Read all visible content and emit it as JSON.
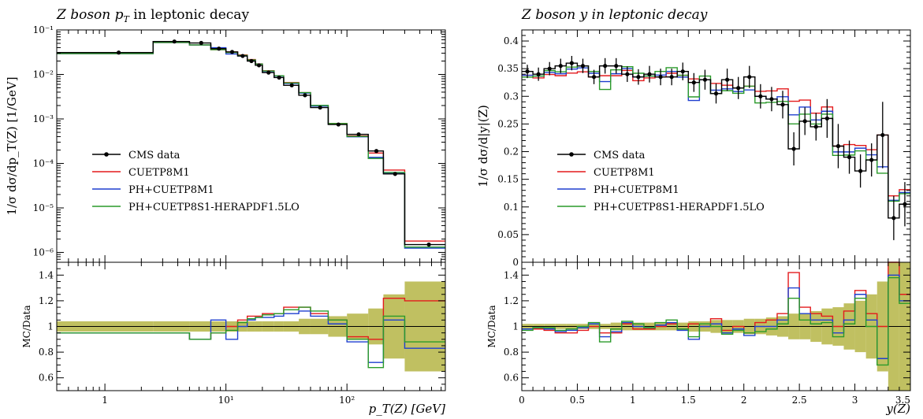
{
  "colors": {
    "data": "#000000",
    "cuetp8m1": "#e31a1c",
    "ph_cuetp8m1": "#1f3fcf",
    "ph_cuetp8s1": "#2a9a2a",
    "band": "#b5b545"
  },
  "chart_data": [
    {
      "type": "line",
      "title": "Z boson p_T in leptonic decay",
      "xlabel": "p_T(Z) [GeV]",
      "ylabel": "1/σ dσ/dp_T(Z) [1/GeV]",
      "ratio_ylabel": "MC/Data",
      "xscale": "log",
      "yscale": "log",
      "xlim": [
        0.4,
        650
      ],
      "ylim": [
        6e-07,
        0.1
      ],
      "ratio_ylim": [
        0.5,
        1.5
      ],
      "xticks": [
        "1",
        "10¹",
        "10²"
      ],
      "yticks": [
        "10⁻⁶",
        "10⁻⁵",
        "10⁻⁴",
        "10⁻³",
        "10⁻²",
        "10⁻¹"
      ],
      "ratio_yticks": [
        "0.6",
        "0.8",
        "1",
        "1.2",
        "1.4"
      ],
      "legend_position": "center-left",
      "bin_edges": [
        0.4,
        2.5,
        5,
        7.5,
        10,
        12.5,
        15,
        17.5,
        20,
        25,
        30,
        40,
        50,
        70,
        100,
        150,
        200,
        300,
        650
      ],
      "data_x": [
        1.3,
        3.75,
        6.25,
        8.75,
        11.25,
        13.75,
        16.25,
        18.75,
        22.5,
        27.5,
        35,
        45,
        60,
        85,
        125,
        175,
        250,
        475
      ],
      "data_y": [
        0.031,
        0.055,
        0.051,
        0.038,
        0.032,
        0.026,
        0.02,
        0.016,
        0.011,
        0.0085,
        0.0057,
        0.0034,
        0.0018,
        0.00075,
        0.00045,
        0.00019,
        5.8e-05,
        1.5e-06
      ],
      "band": [
        0.04,
        0.04,
        0.04,
        0.04,
        0.04,
        0.04,
        0.04,
        0.04,
        0.04,
        0.04,
        0.04,
        0.06,
        0.06,
        0.08,
        0.1,
        0.14,
        0.25,
        0.35
      ],
      "series": [
        {
          "name": "CMS data",
          "values": [
            0.031,
            0.055,
            0.051,
            0.038,
            0.032,
            0.026,
            0.02,
            0.016,
            0.011,
            0.0085,
            0.0057,
            0.0034,
            0.0018,
            0.00075,
            0.00045,
            0.00019,
            5.8e-05,
            1.5e-06
          ]
        },
        {
          "name": "CUETP8M1",
          "ratio": [
            0.95,
            0.95,
            0.9,
            0.95,
            1.0,
            1.05,
            1.08,
            1.08,
            1.1,
            1.1,
            1.15,
            1.15,
            1.1,
            1.05,
            0.92,
            0.9,
            1.22,
            1.2
          ]
        },
        {
          "name": "PH+CUETP8M1",
          "ratio": [
            0.95,
            0.95,
            0.9,
            1.05,
            0.9,
            1.0,
            1.05,
            1.07,
            1.07,
            1.08,
            1.1,
            1.12,
            1.08,
            1.02,
            0.88,
            0.72,
            1.05,
            0.83
          ]
        },
        {
          "name": "PH+CUETP8S1-HERAPDF1.5LO",
          "ratio": [
            0.95,
            0.95,
            0.9,
            0.95,
            0.97,
            1.03,
            1.06,
            1.07,
            1.09,
            1.1,
            1.13,
            1.15,
            1.12,
            1.05,
            0.9,
            0.68,
            1.08,
            0.88
          ]
        }
      ]
    },
    {
      "type": "line",
      "title": "Z boson y in leptonic decay",
      "xlabel": "y(Z)",
      "ylabel": "1/σ dσ/d|y|(Z)",
      "ratio_ylabel": "MC/Data",
      "xscale": "linear",
      "yscale": "linear",
      "xlim": [
        0,
        3.5
      ],
      "ylim": [
        0,
        0.42
      ],
      "ratio_ylim": [
        0.5,
        1.5
      ],
      "xticks": [
        "0",
        "0.5",
        "1",
        "1.5",
        "2",
        "2.5",
        "3",
        "3.5"
      ],
      "yticks": [
        "0",
        "0.05",
        "0.1",
        "0.15",
        "0.2",
        "0.25",
        "0.3",
        "0.35",
        "0.4"
      ],
      "ratio_yticks": [
        "0.6",
        "0.8",
        "1",
        "1.2",
        "1.4"
      ],
      "legend_position": "center-left",
      "bin_width": 0.1,
      "data_y": [
        0.345,
        0.34,
        0.35,
        0.355,
        0.36,
        0.355,
        0.335,
        0.355,
        0.355,
        0.34,
        0.335,
        0.34,
        0.335,
        0.335,
        0.345,
        0.325,
        0.33,
        0.305,
        0.33,
        0.315,
        0.335,
        0.3,
        0.295,
        0.285,
        0.205,
        0.255,
        0.245,
        0.26,
        0.21,
        0.19,
        0.165,
        0.185,
        0.23,
        0.08,
        0.105
      ],
      "data_err": [
        0.012,
        0.012,
        0.012,
        0.013,
        0.013,
        0.013,
        0.013,
        0.014,
        0.014,
        0.014,
        0.014,
        0.015,
        0.015,
        0.015,
        0.016,
        0.017,
        0.018,
        0.018,
        0.02,
        0.02,
        0.02,
        0.022,
        0.022,
        0.025,
        0.03,
        0.025,
        0.025,
        0.035,
        0.04,
        0.03,
        0.03,
        0.03,
        0.06,
        0.04,
        0.04
      ],
      "band": [
        0.02,
        0.02,
        0.02,
        0.02,
        0.02,
        0.02,
        0.02,
        0.02,
        0.03,
        0.03,
        0.03,
        0.03,
        0.03,
        0.03,
        0.03,
        0.04,
        0.04,
        0.05,
        0.05,
        0.05,
        0.06,
        0.06,
        0.07,
        0.08,
        0.1,
        0.1,
        0.12,
        0.14,
        0.15,
        0.18,
        0.2,
        0.25,
        0.35,
        0.5,
        0.5
      ],
      "series": [
        {
          "name": "CMS data",
          "values": [
            0.345,
            0.34,
            0.35,
            0.355,
            0.36,
            0.355,
            0.335,
            0.355,
            0.355,
            0.34,
            0.335,
            0.34,
            0.335,
            0.335,
            0.345,
            0.325,
            0.33,
            0.305,
            0.33,
            0.315,
            0.335,
            0.3,
            0.295,
            0.285,
            0.205,
            0.255,
            0.245,
            0.26,
            0.21,
            0.19,
            0.165,
            0.185,
            0.23,
            0.08,
            0.105
          ]
        },
        {
          "name": "CUETP8M1",
          "ratio": [
            0.98,
            0.98,
            0.97,
            0.95,
            0.95,
            0.97,
            1.0,
            0.95,
            0.95,
            1.02,
            0.98,
            0.98,
            1.0,
            1.02,
            0.98,
            1.02,
            1.0,
            1.06,
            0.97,
            1.0,
            0.95,
            1.03,
            1.05,
            1.1,
            1.42,
            1.15,
            1.1,
            1.08,
            1.0,
            1.12,
            1.28,
            1.1,
            1.0,
            1.5,
            1.25
          ]
        },
        {
          "name": "PH+CUETP8M1",
          "ratio": [
            0.98,
            0.99,
            0.98,
            0.96,
            0.97,
            0.99,
            1.02,
            0.92,
            0.96,
            1.03,
            1.0,
            0.99,
            1.01,
            1.03,
            0.97,
            0.9,
            1.0,
            1.02,
            0.95,
            0.98,
            0.93,
            1.0,
            1.0,
            1.05,
            1.3,
            1.1,
            1.05,
            1.05,
            0.95,
            1.05,
            1.25,
            1.05,
            0.75,
            1.4,
            1.2
          ]
        },
        {
          "name": "PH+CUETP8S1-HERAPDF1.5LO",
          "ratio": [
            0.97,
            0.99,
            0.99,
            0.97,
            0.98,
            1.0,
            1.03,
            0.88,
            0.98,
            1.04,
            1.02,
            0.99,
            1.03,
            1.05,
            0.98,
            0.92,
            1.02,
            1.0,
            0.94,
            0.97,
            0.95,
            0.96,
            0.98,
            1.02,
            1.22,
            1.05,
            1.02,
            1.03,
            0.92,
            1.02,
            1.22,
            1.0,
            0.7,
            1.38,
            1.18
          ]
        }
      ]
    }
  ]
}
